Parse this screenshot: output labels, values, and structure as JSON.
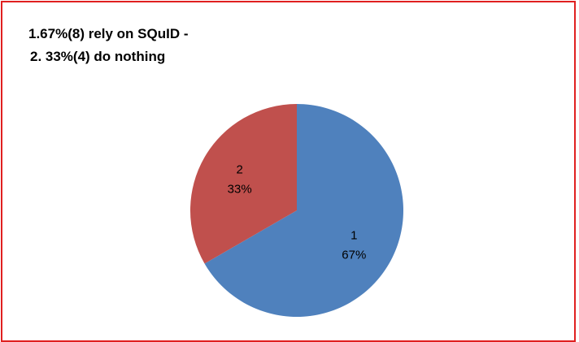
{
  "chart_data": {
    "type": "pie",
    "title_lines": [
      "1.67%(8) rely on SQuID -",
      "2. 33%(4) do nothing"
    ],
    "slices": [
      {
        "category": "1",
        "percent_label": "67%",
        "value": 8,
        "color": "#4f81bd"
      },
      {
        "category": "2",
        "percent_label": "33%",
        "value": 4,
        "color": "#c0504d"
      }
    ],
    "start_angle_deg": 0,
    "direction": "clockwise",
    "legend": "none"
  }
}
